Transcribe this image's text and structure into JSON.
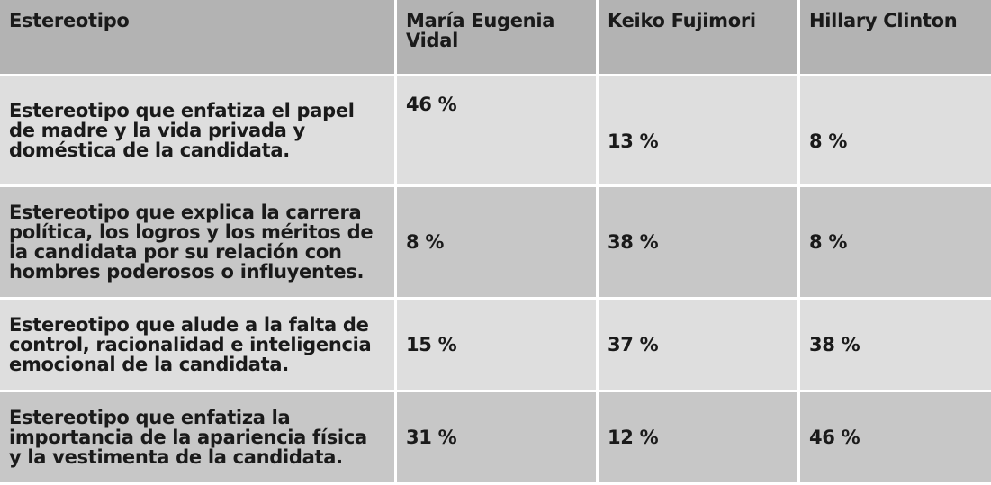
{
  "table": {
    "header": [
      "Estereotipo",
      "María Eugenia Vidal",
      "Keiko Fujimori",
      "Hillary Clinton"
    ],
    "rows": [
      [
        "Estereotipo que enfatiza el papel de madre y la vida privada y doméstica de la candidata.",
        "46 %",
        "13 %",
        "8 %"
      ],
      [
        "Estereotipo que explica la carrera política, los logros y los méritos de la candidata por su relación con hombres poderosos o influyentes.",
        "8 %",
        "38 %",
        "8 %"
      ],
      [
        "Estereotipo que alude a la falta de control, racionalidad e inteligencia emocional de la candidata.",
        "15 %",
        "37 %",
        "38 %"
      ],
      [
        "Estereotipo que enfatiza la importancia de la apariencia física y la vestimenta de la candidata.",
        "31 %",
        "12 %",
        "46 %"
      ]
    ]
  }
}
